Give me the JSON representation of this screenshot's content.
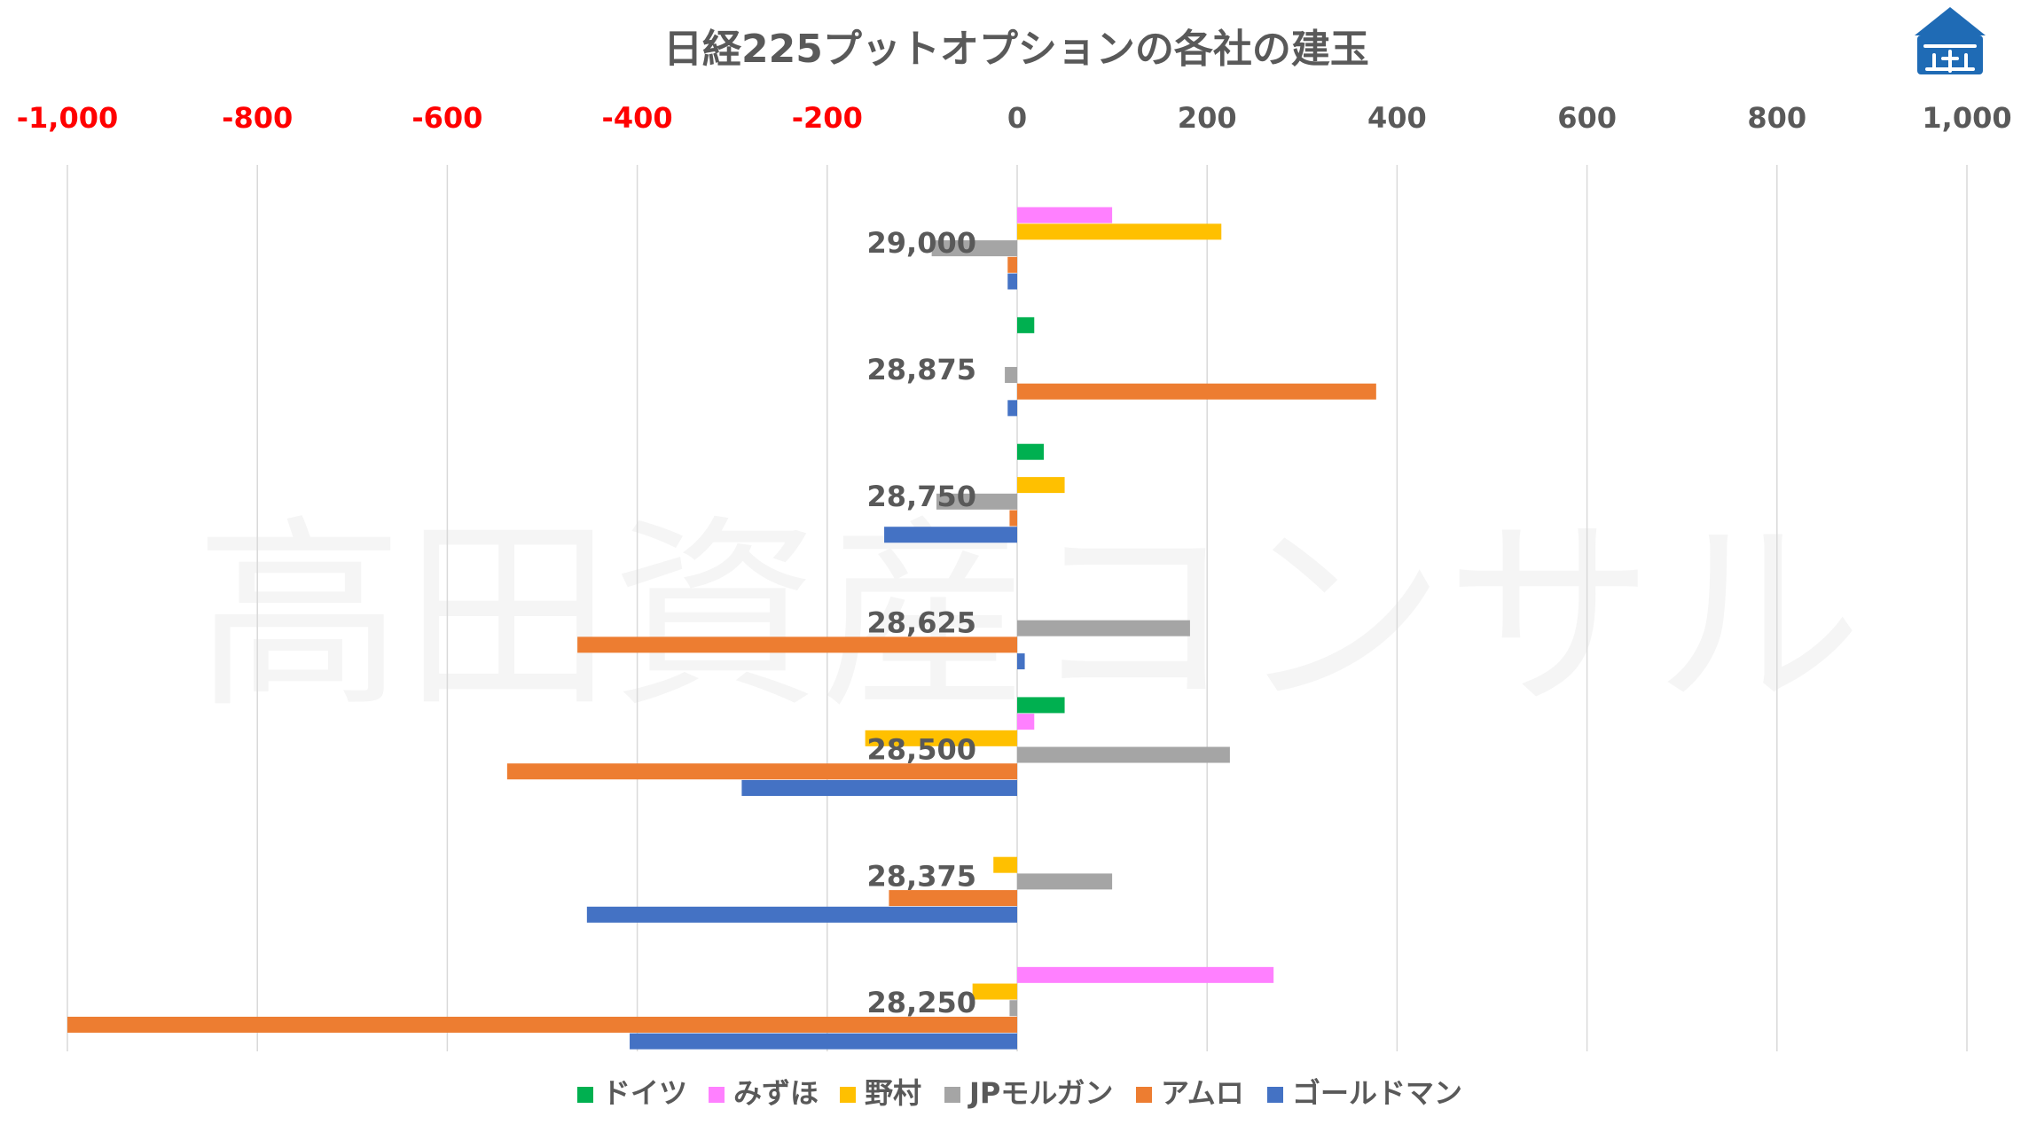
{
  "chart_data": {
    "type": "bar",
    "orientation": "horizontal",
    "title": "日経225プットオプションの各社の建玉",
    "watermark": "高田資産コンサル",
    "xlim": [
      -1000,
      1000
    ],
    "x_ticks": [
      {
        "value": -1000,
        "label": "-1,000"
      },
      {
        "value": -800,
        "label": "-800"
      },
      {
        "value": -600,
        "label": "-600"
      },
      {
        "value": -400,
        "label": "-400"
      },
      {
        "value": -200,
        "label": "-200"
      },
      {
        "value": 0,
        "label": "0"
      },
      {
        "value": 200,
        "label": "200"
      },
      {
        "value": 400,
        "label": "400"
      },
      {
        "value": 600,
        "label": "600"
      },
      {
        "value": 800,
        "label": "800"
      },
      {
        "value": 1000,
        "label": "1,000"
      }
    ],
    "negative_tick_color": "#ff0000",
    "positive_tick_color": "#595959",
    "grid": true,
    "legend_position": "bottom",
    "categories": [
      "29,000",
      "28,875",
      "28,750",
      "28,625",
      "28,500",
      "28,375",
      "28,250"
    ],
    "series": [
      {
        "name": "ドイツ",
        "color": "#00b050",
        "values": [
          0,
          18,
          28,
          0,
          50,
          0,
          0
        ]
      },
      {
        "name": "みずほ",
        "color": "#ff80ff",
        "values": [
          100,
          0,
          0,
          0,
          18,
          0,
          270
        ]
      },
      {
        "name": "野村",
        "color": "#ffc000",
        "values": [
          215,
          0,
          50,
          0,
          -160,
          -25,
          -47
        ]
      },
      {
        "name": "JPモルガン",
        "color": "#a5a5a5",
        "values": [
          -90,
          -13,
          -85,
          182,
          224,
          100,
          -8
        ]
      },
      {
        "name": "アムロ",
        "color": "#ed7d31",
        "values": [
          -10,
          378,
          -8,
          -463,
          -537,
          -135,
          -1000
        ]
      },
      {
        "name": "ゴールドマン",
        "color": "#4472c4",
        "values": [
          -10,
          -10,
          -140,
          8,
          -290,
          -453,
          -408
        ]
      }
    ]
  },
  "logo": {
    "name": "house-logo",
    "color": "#1f6bb5"
  }
}
